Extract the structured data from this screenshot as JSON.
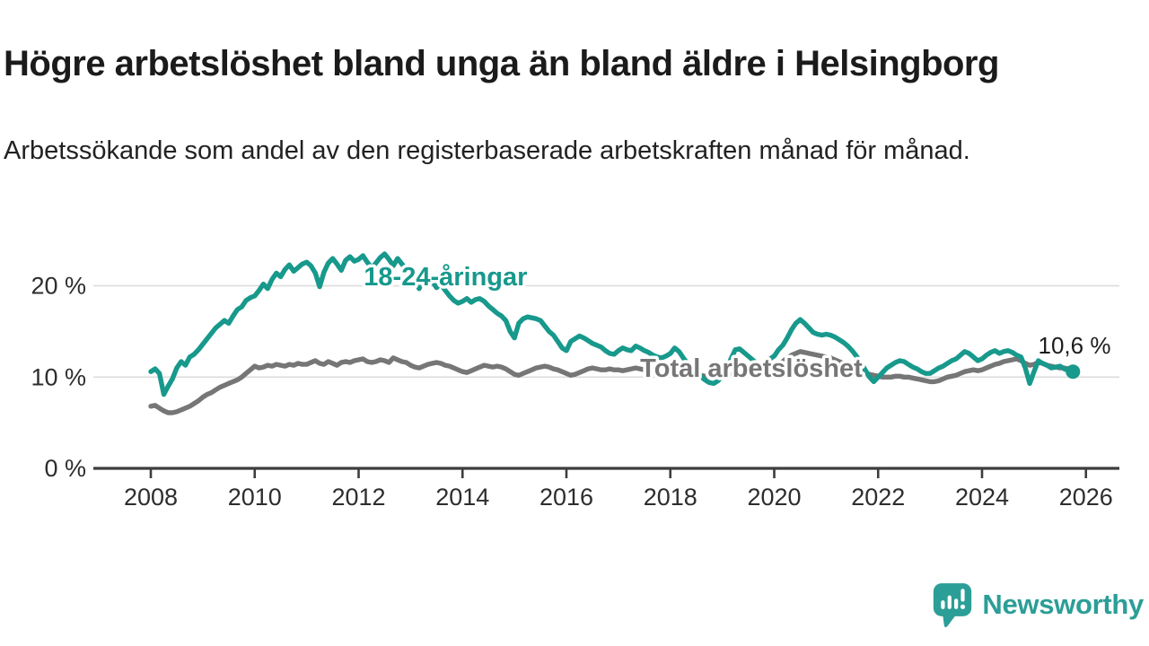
{
  "header": {
    "title": "Högre arbetslöshet bland unga än bland äldre i Helsingborg",
    "subtitle": "Arbetssökande som andel av den registerbaserade arbetskraften månad för månad."
  },
  "footer": {
    "brand": "Newsworthy"
  },
  "colors": {
    "youth_line": "#17998c",
    "total_line": "#767676",
    "gridline": "#dcdcdc",
    "axis": "#3d3d3d",
    "tick_text": "#2d2d2d",
    "annotation_text": "#1c1c1c",
    "logo_teal": "#2b9e97"
  },
  "chart_data": {
    "type": "line",
    "title": "Högre arbetslöshet bland unga än bland äldre i Helsingborg",
    "subtitle": "Arbetssökande som andel av den registerbaserade arbetskraften månad för månad.",
    "unit": "%",
    "x_axis": {
      "range_years": [
        2006.9,
        2026.65
      ],
      "ticks": [
        {
          "v": 2008,
          "label": "2008"
        },
        {
          "v": 2010,
          "label": "2010"
        },
        {
          "v": 2012,
          "label": "2012"
        },
        {
          "v": 2014,
          "label": "2014"
        },
        {
          "v": 2016,
          "label": "2016"
        },
        {
          "v": 2018,
          "label": "2018"
        },
        {
          "v": 2020,
          "label": "2020"
        },
        {
          "v": 2022,
          "label": "2022"
        },
        {
          "v": 2024,
          "label": "2024"
        },
        {
          "v": 2026,
          "label": "2026"
        }
      ]
    },
    "y_axis": {
      "range": [
        0,
        28
      ],
      "grid": true,
      "ticks": [
        {
          "v": 0,
          "label": "0 %"
        },
        {
          "v": 10,
          "label": "10 %"
        },
        {
          "v": 20,
          "label": "20 %"
        }
      ]
    },
    "legend_position": "inline-labels",
    "series": [
      {
        "name": "Total arbetslöshet",
        "color": "#767676",
        "start_year": 2008.0,
        "step_months": 1,
        "label_anchor": {
          "t": 2017.42,
          "v": 10.03
        },
        "end_dot": false,
        "values": [
          6.8,
          6.9,
          6.6,
          6.3,
          6.1,
          6.1,
          6.2,
          6.4,
          6.6,
          6.8,
          7.1,
          7.4,
          7.8,
          8.1,
          8.3,
          8.6,
          8.9,
          9.1,
          9.3,
          9.5,
          9.7,
          10.0,
          10.4,
          10.8,
          11.2,
          11.0,
          11.1,
          11.3,
          11.2,
          11.4,
          11.3,
          11.2,
          11.4,
          11.3,
          11.5,
          11.4,
          11.4,
          11.6,
          11.8,
          11.5,
          11.4,
          11.7,
          11.5,
          11.3,
          11.6,
          11.7,
          11.6,
          11.8,
          11.9,
          12.0,
          11.7,
          11.6,
          11.7,
          11.9,
          11.8,
          11.6,
          12.1,
          11.9,
          11.7,
          11.6,
          11.3,
          11.1,
          11.0,
          11.2,
          11.4,
          11.5,
          11.6,
          11.5,
          11.3,
          11.2,
          11.0,
          10.8,
          10.6,
          10.5,
          10.7,
          10.9,
          11.1,
          11.3,
          11.2,
          11.1,
          11.2,
          11.1,
          10.9,
          10.6,
          10.3,
          10.2,
          10.4,
          10.6,
          10.8,
          11.0,
          11.1,
          11.2,
          11.1,
          10.9,
          10.8,
          10.6,
          10.4,
          10.2,
          10.3,
          10.5,
          10.7,
          10.9,
          11.0,
          10.9,
          10.8,
          10.8,
          10.9,
          10.8,
          10.8,
          10.7,
          10.8,
          10.9,
          11.0,
          10.9,
          10.8,
          10.7,
          10.7,
          10.6,
          10.5,
          10.4,
          10.4,
          10.3,
          10.3,
          10.4,
          10.4,
          10.3,
          10.2,
          10.2,
          10.1,
          10.1,
          10.2,
          10.2,
          10.2,
          10.3,
          10.3,
          10.4,
          10.4,
          10.5,
          10.6,
          10.6,
          10.7,
          10.8,
          10.9,
          11.0,
          11.2,
          11.4,
          11.7,
          12.1,
          12.4,
          12.6,
          12.8,
          12.7,
          12.6,
          12.5,
          12.4,
          12.3,
          12.2,
          12.1,
          11.9,
          11.7,
          11.5,
          11.3,
          11.1,
          10.9,
          10.7,
          10.5,
          10.3,
          10.2,
          10.1,
          10.0,
          10.0,
          10.0,
          10.1,
          10.1,
          10.0,
          10.0,
          9.9,
          9.8,
          9.7,
          9.6,
          9.5,
          9.5,
          9.6,
          9.8,
          10.0,
          10.1,
          10.2,
          10.4,
          10.6,
          10.7,
          10.8,
          10.7,
          10.8,
          11.0,
          11.2,
          11.4,
          11.5,
          11.7,
          11.8,
          11.9,
          12.0,
          11.8,
          11.5,
          11.3,
          11.4,
          11.6,
          11.5,
          11.3,
          11.2,
          11.1,
          11.0,
          11.0,
          10.9
        ]
      },
      {
        "name": "18-24-åringar",
        "color": "#17998c",
        "start_year": 2008.0,
        "step_months": 1,
        "label_anchor": {
          "t": 2012.1,
          "v": 20.05
        },
        "end_dot": true,
        "values": [
          10.6,
          10.9,
          10.4,
          8.1,
          9.0,
          9.8,
          11.0,
          11.7,
          11.3,
          12.2,
          12.5,
          13.0,
          13.6,
          14.2,
          14.8,
          15.4,
          15.8,
          16.2,
          15.9,
          16.7,
          17.4,
          17.7,
          18.4,
          18.7,
          18.9,
          19.5,
          20.2,
          19.7,
          20.7,
          21.4,
          21.0,
          21.8,
          22.3,
          21.6,
          22.0,
          22.4,
          22.6,
          22.2,
          21.4,
          19.9,
          21.5,
          22.5,
          23.0,
          22.4,
          21.7,
          22.8,
          23.2,
          22.7,
          22.9,
          23.3,
          22.6,
          22.0,
          22.5,
          23.1,
          23.5,
          22.9,
          22.2,
          23.0,
          22.4,
          21.8,
          21.3,
          20.6,
          19.7,
          20.8,
          21.2,
          20.5,
          19.8,
          20.2,
          19.5,
          18.9,
          18.4,
          18.1,
          18.3,
          18.6,
          18.2,
          18.5,
          18.6,
          18.3,
          17.8,
          17.4,
          17.0,
          16.7,
          16.2,
          15.0,
          14.3,
          15.9,
          16.4,
          16.6,
          16.5,
          16.4,
          16.2,
          15.6,
          15.0,
          14.6,
          13.9,
          13.2,
          12.9,
          13.9,
          14.2,
          14.5,
          14.3,
          14.0,
          13.7,
          13.5,
          13.3,
          12.9,
          12.6,
          12.5,
          12.9,
          13.2,
          13.0,
          12.9,
          13.4,
          13.2,
          12.9,
          12.7,
          12.4,
          12.2,
          12.1,
          12.3,
          12.6,
          13.2,
          12.8,
          12.1,
          11.5,
          11.0,
          10.6,
          10.1,
          9.7,
          9.4,
          9.3,
          9.6,
          10.1,
          10.9,
          12.0,
          13.0,
          13.1,
          12.7,
          12.3,
          11.9,
          11.5,
          11.3,
          11.6,
          12.0,
          12.3,
          13.0,
          13.5,
          14.3,
          15.2,
          15.9,
          16.3,
          15.9,
          15.4,
          14.9,
          14.7,
          14.6,
          14.7,
          14.6,
          14.4,
          14.1,
          13.8,
          13.4,
          12.9,
          12.3,
          11.6,
          10.8,
          10.0,
          9.5,
          10.0,
          10.5,
          11.0,
          11.3,
          11.6,
          11.8,
          11.7,
          11.4,
          11.1,
          10.9,
          10.6,
          10.4,
          10.4,
          10.7,
          11.0,
          11.2,
          11.5,
          11.8,
          12.0,
          12.4,
          12.8,
          12.6,
          12.2,
          11.8,
          12.0,
          12.4,
          12.7,
          12.9,
          12.6,
          12.8,
          12.9,
          12.7,
          12.4,
          12.2,
          11.0,
          9.3,
          10.6,
          11.8,
          11.5,
          11.3,
          11.0,
          11.1,
          11.2,
          10.9,
          10.7,
          10.6
        ]
      }
    ],
    "annotations": [
      {
        "text": "10,6 %",
        "t": 2025.08,
        "v": 12.6
      }
    ],
    "latest_value_label": "10,6 %"
  }
}
